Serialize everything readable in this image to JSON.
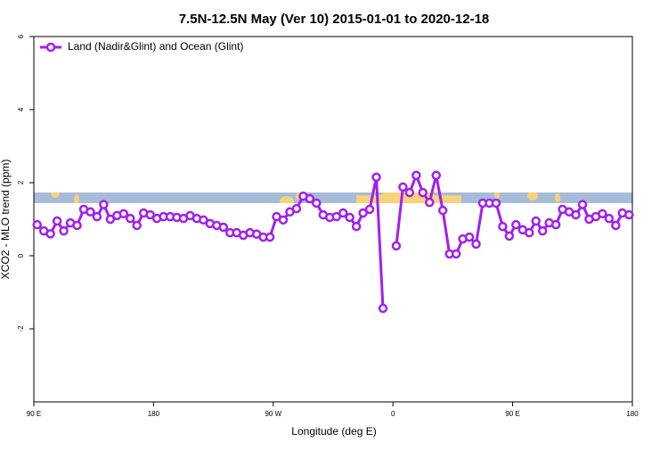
{
  "chart_data": {
    "type": "line",
    "title": "7.5N-12.5N May (Ver 10)   2015-01-01 to 2020-12-18",
    "x_label": "Longitude (deg E)",
    "y_label": "XCO2 - MLO trend (ppm)",
    "x": [
      92.5,
      97.5,
      102.5,
      107.5,
      112.5,
      117.5,
      122.5,
      127.5,
      132.5,
      137.5,
      142.5,
      147.5,
      152.5,
      157.5,
      162.5,
      167.5,
      172.5,
      177.5,
      182.5,
      187.5,
      192.5,
      197.5,
      202.5,
      207.5,
      212.5,
      217.5,
      222.5,
      227.5,
      232.5,
      237.5,
      242.5,
      247.5,
      252.5,
      257.5,
      262.5,
      267.5,
      272.5,
      277.5,
      282.5,
      287.5,
      292.5,
      297.5,
      302.5,
      307.5,
      312.5,
      317.5,
      322.5,
      327.5,
      332.5,
      337.5,
      342.5,
      347.5,
      352.5,
      357.5,
      362.5,
      367.5,
      372.5,
      377.5,
      382.5,
      387.5,
      392.5,
      397.5,
      402.5,
      407.5,
      412.5,
      417.5,
      422.5,
      427.5,
      432.5,
      437.5,
      442.5,
      447.5,
      452.5,
      457.5,
      462.5,
      467.5,
      472.5,
      477.5,
      482.5,
      487.5,
      492.5,
      497.5,
      502.5,
      507.5,
      512.5,
      517.5,
      522.5,
      527.5,
      532.5,
      537.5
    ],
    "series": [
      {
        "name": "Land (Nadir&Glint) and Ocean (Glint)",
        "color": "#a020f0",
        "values": [
          0.85,
          0.68,
          0.6,
          0.95,
          0.68,
          0.9,
          0.83,
          1.27,
          1.2,
          1.07,
          1.4,
          1.0,
          1.1,
          1.15,
          1.02,
          0.83,
          1.17,
          1.12,
          1.02,
          1.07,
          1.07,
          1.05,
          1.02,
          1.1,
          1.02,
          0.98,
          0.88,
          0.83,
          0.78,
          0.63,
          0.63,
          0.56,
          0.63,
          0.59,
          0.51,
          0.51,
          1.07,
          0.98,
          1.2,
          1.29,
          1.63,
          1.56,
          1.44,
          1.12,
          1.05,
          1.07,
          1.17,
          1.05,
          0.8,
          1.17,
          1.27,
          2.15,
          -1.44,
          null,
          0.27,
          1.88,
          1.73,
          2.2,
          1.73,
          1.46,
          2.2,
          1.24,
          0.05,
          0.05,
          0.46,
          0.51,
          0.32,
          1.44,
          1.44,
          1.44,
          0.8,
          0.54,
          0.85,
          0.71,
          0.63,
          0.95,
          0.68,
          0.9,
          0.85,
          1.27,
          1.2,
          1.12,
          1.4,
          1.0,
          1.07,
          1.15,
          1.02,
          0.83,
          1.17,
          1.12
        ]
      }
    ],
    "xlim": [
      90,
      540
    ],
    "xticks": [
      {
        "value": 90,
        "label": "90 E"
      },
      180,
      {
        "value": 270,
        "label": "90 W"
      },
      {
        "value": 360,
        "label": "0"
      },
      {
        "value": 450,
        "label": "90 E"
      },
      180
    ],
    "ylim": [
      -4,
      6
    ],
    "yticks": [
      -2,
      0,
      2,
      4,
      6
    ],
    "legend": "top-left"
  }
}
